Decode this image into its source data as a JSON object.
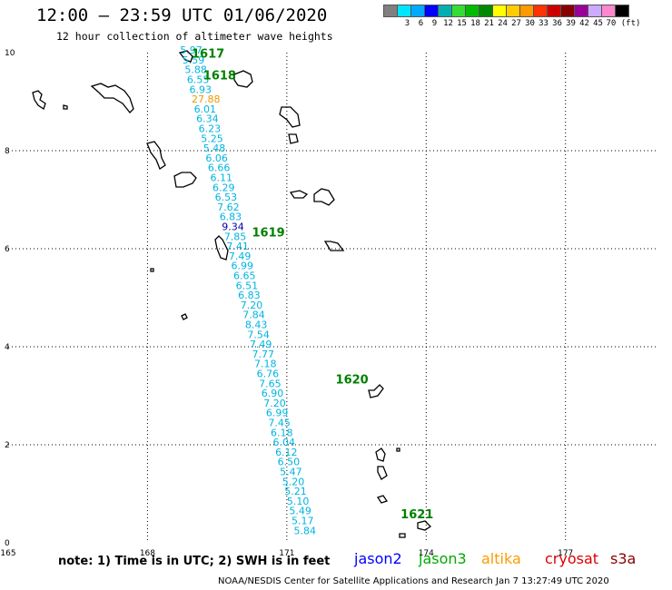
{
  "header": {
    "title": "12:00 – 23:59 UTC 01/06/2020",
    "subtitle": "12 hour collection of altimeter wave heights"
  },
  "colorbar": {
    "colors": [
      "#808080",
      "#00e5ff",
      "#00aaff",
      "#0000ff",
      "#00b0b0",
      "#33dd33",
      "#00bb00",
      "#008800",
      "#ffff00",
      "#ffcc00",
      "#ff9900",
      "#ff3300",
      "#cc0000",
      "#880000",
      "#990099",
      "#ccaaff",
      "#ff88cc",
      "#000000"
    ],
    "labels": [
      "3",
      "6",
      "9",
      "12",
      "15",
      "18",
      "21",
      "24",
      "27",
      "30",
      "33",
      "36",
      "39",
      "42",
      "45",
      "70 (ft)"
    ]
  },
  "map": {
    "x_ticks": [
      "165",
      "168",
      "171",
      "174",
      "177"
    ],
    "y_ticks": [
      "0",
      "2",
      "4",
      "6",
      "8",
      "10"
    ],
    "x_range": [
      165,
      179
    ],
    "y_range": [
      0,
      10
    ],
    "grid": true,
    "track_color": "#00b4e0",
    "time_labels": [
      {
        "text": "1617",
        "lon": 168.95,
        "lat": 9.9
      },
      {
        "text": "1618",
        "lon": 169.2,
        "lat": 9.45
      },
      {
        "text": "1619",
        "lon": 170.25,
        "lat": 6.25
      },
      {
        "text": "1620",
        "lon": 172.05,
        "lat": 3.25
      },
      {
        "text": "1621",
        "lon": 173.45,
        "lat": 0.5
      }
    ],
    "wave_heights": [
      {
        "v": "5.97",
        "lon": 168.7,
        "lat": 9.98
      },
      {
        "v": "5.59",
        "lon": 168.75,
        "lat": 9.78
      },
      {
        "v": "5.88",
        "lon": 168.8,
        "lat": 9.58
      },
      {
        "v": "6.55",
        "lon": 168.85,
        "lat": 9.38
      },
      {
        "v": "6.93",
        "lon": 168.9,
        "lat": 9.18
      },
      {
        "v": "27.88",
        "lon": 168.95,
        "lat": 8.98,
        "color": "#ee9900"
      },
      {
        "v": "6.01",
        "lon": 169.0,
        "lat": 8.78
      },
      {
        "v": "6.34",
        "lon": 169.05,
        "lat": 8.58
      },
      {
        "v": "6.23",
        "lon": 169.1,
        "lat": 8.38
      },
      {
        "v": "5.25",
        "lon": 169.15,
        "lat": 8.18
      },
      {
        "v": "5.48",
        "lon": 169.2,
        "lat": 7.98
      },
      {
        "v": "6.06",
        "lon": 169.25,
        "lat": 7.78
      },
      {
        "v": "6.66",
        "lon": 169.3,
        "lat": 7.58
      },
      {
        "v": "6.11",
        "lon": 169.35,
        "lat": 7.38
      },
      {
        "v": "6.29",
        "lon": 169.4,
        "lat": 7.18
      },
      {
        "v": "6.53",
        "lon": 169.45,
        "lat": 6.98
      },
      {
        "v": "7.62",
        "lon": 169.5,
        "lat": 6.78
      },
      {
        "v": "6.83",
        "lon": 169.55,
        "lat": 6.58
      },
      {
        "v": "9.34",
        "lon": 169.6,
        "lat": 6.38,
        "color": "#0000aa"
      },
      {
        "v": "7.85",
        "lon": 169.65,
        "lat": 6.18
      },
      {
        "v": "7.41",
        "lon": 169.7,
        "lat": 5.98
      },
      {
        "v": "7.49",
        "lon": 169.75,
        "lat": 5.78
      },
      {
        "v": "6.99",
        "lon": 169.8,
        "lat": 5.58
      },
      {
        "v": "6.65",
        "lon": 169.85,
        "lat": 5.38
      },
      {
        "v": "6.51",
        "lon": 169.9,
        "lat": 5.18
      },
      {
        "v": "6.83",
        "lon": 169.95,
        "lat": 4.98
      },
      {
        "v": "7.20",
        "lon": 170.0,
        "lat": 4.78
      },
      {
        "v": "7.84",
        "lon": 170.05,
        "lat": 4.58
      },
      {
        "v": "8.43",
        "lon": 170.1,
        "lat": 4.38
      },
      {
        "v": "7.54",
        "lon": 170.15,
        "lat": 4.18
      },
      {
        "v": "7.49",
        "lon": 170.2,
        "lat": 3.98
      },
      {
        "v": "7.77",
        "lon": 170.25,
        "lat": 3.78
      },
      {
        "v": "7.18",
        "lon": 170.3,
        "lat": 3.58
      },
      {
        "v": "6.76",
        "lon": 170.35,
        "lat": 3.38
      },
      {
        "v": "7.65",
        "lon": 170.4,
        "lat": 3.18
      },
      {
        "v": "6.90",
        "lon": 170.45,
        "lat": 2.98
      },
      {
        "v": "7.20",
        "lon": 170.5,
        "lat": 2.78
      },
      {
        "v": "6.99",
        "lon": 170.55,
        "lat": 2.58
      },
      {
        "v": "7.45",
        "lon": 170.6,
        "lat": 2.38
      },
      {
        "v": "6.18",
        "lon": 170.65,
        "lat": 2.18
      },
      {
        "v": "6.04",
        "lon": 170.7,
        "lat": 1.98
      },
      {
        "v": "6.12",
        "lon": 170.75,
        "lat": 1.78
      },
      {
        "v": "6.50",
        "lon": 170.8,
        "lat": 1.58
      },
      {
        "v": "5.47",
        "lon": 170.85,
        "lat": 1.38
      },
      {
        "v": "5.20",
        "lon": 170.9,
        "lat": 1.18
      },
      {
        "v": "5.21",
        "lon": 170.95,
        "lat": 0.98
      },
      {
        "v": "5.10",
        "lon": 171.0,
        "lat": 0.78
      },
      {
        "v": "5.49",
        "lon": 171.05,
        "lat": 0.58
      },
      {
        "v": "5.17",
        "lon": 171.1,
        "lat": 0.38
      },
      {
        "v": "5.84",
        "lon": 171.15,
        "lat": 0.18
      }
    ]
  },
  "footer": {
    "note": "note: 1) Time is in UTC; 2) SWH is in feet",
    "satellites": [
      {
        "name": "jason2",
        "color": "#0000ff"
      },
      {
        "name": "jason3",
        "color": "#00aa00"
      },
      {
        "name": "altika",
        "color": "#ff9900"
      },
      {
        "name": "cryosat",
        "color": "#dd0000"
      },
      {
        "name": "s3a",
        "color": "#880000"
      }
    ],
    "credit": "NOAA/NESDIS Center for Satellite Applications and Research   Jan  7 13:27:49 UTC 2020"
  }
}
